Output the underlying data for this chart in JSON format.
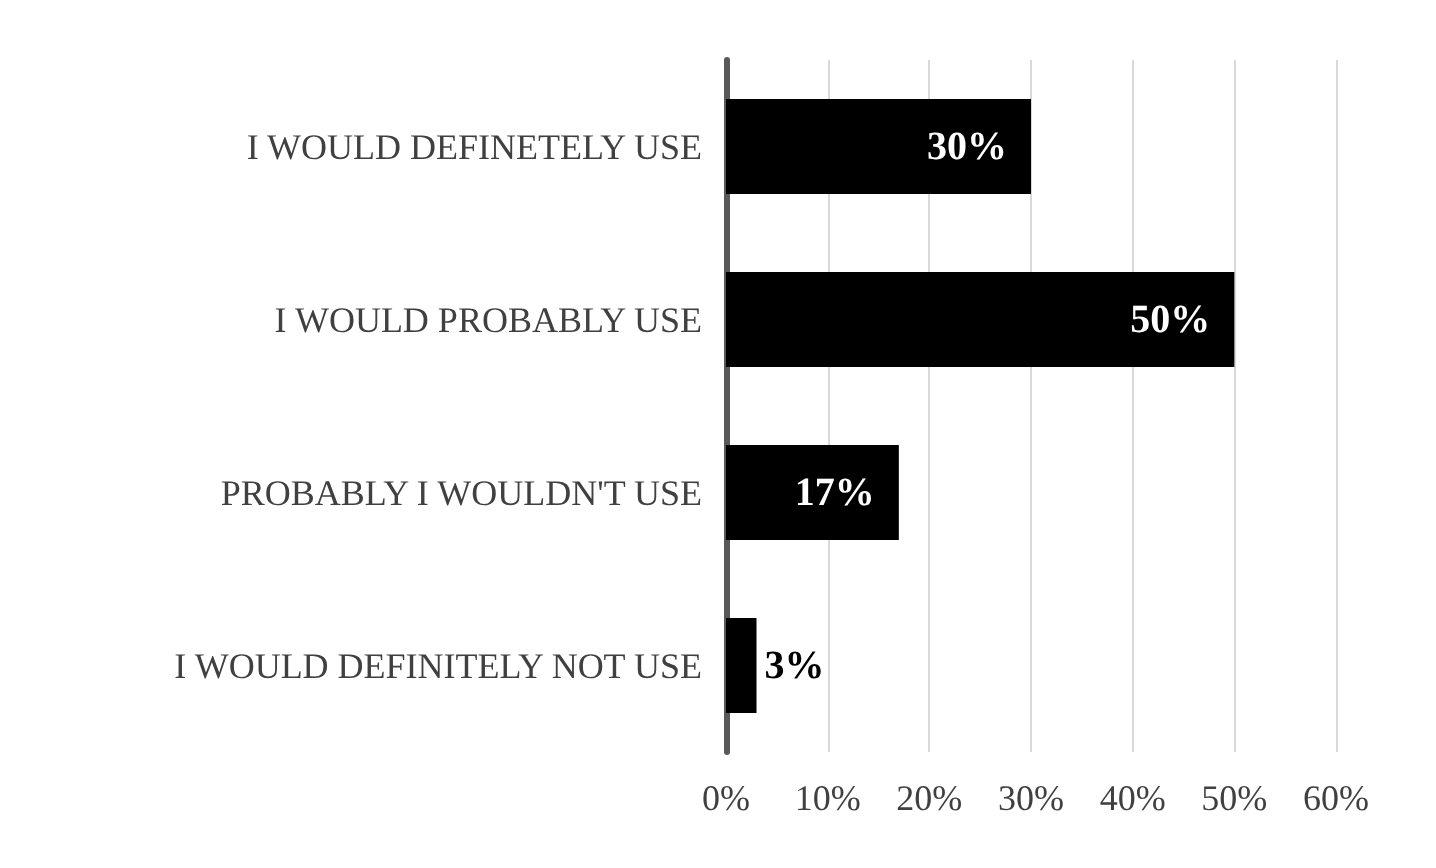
{
  "chart_data": {
    "type": "bar",
    "orientation": "horizontal",
    "categories": [
      "I WOULD DEFINETELY USE",
      "I WOULD PROBABLY USE",
      "PROBABLY I WOULDN'T USE",
      "I WOULD DEFINITELY NOT USE"
    ],
    "values": [
      30,
      50,
      17,
      3
    ],
    "color": "#000000",
    "value_labels": [
      "30%",
      "50%",
      "17%",
      "3%"
    ],
    "xlim": [
      0,
      60
    ],
    "xticks": [
      {
        "value": 0,
        "label": "0%"
      },
      {
        "value": 10,
        "label": "10%"
      },
      {
        "value": 20,
        "label": "20%"
      },
      {
        "value": 30,
        "label": "30%"
      },
      {
        "value": 40,
        "label": "40%"
      },
      {
        "value": 50,
        "label": "50%"
      },
      {
        "value": 60,
        "label": "60%"
      }
    ],
    "grid": "x"
  }
}
